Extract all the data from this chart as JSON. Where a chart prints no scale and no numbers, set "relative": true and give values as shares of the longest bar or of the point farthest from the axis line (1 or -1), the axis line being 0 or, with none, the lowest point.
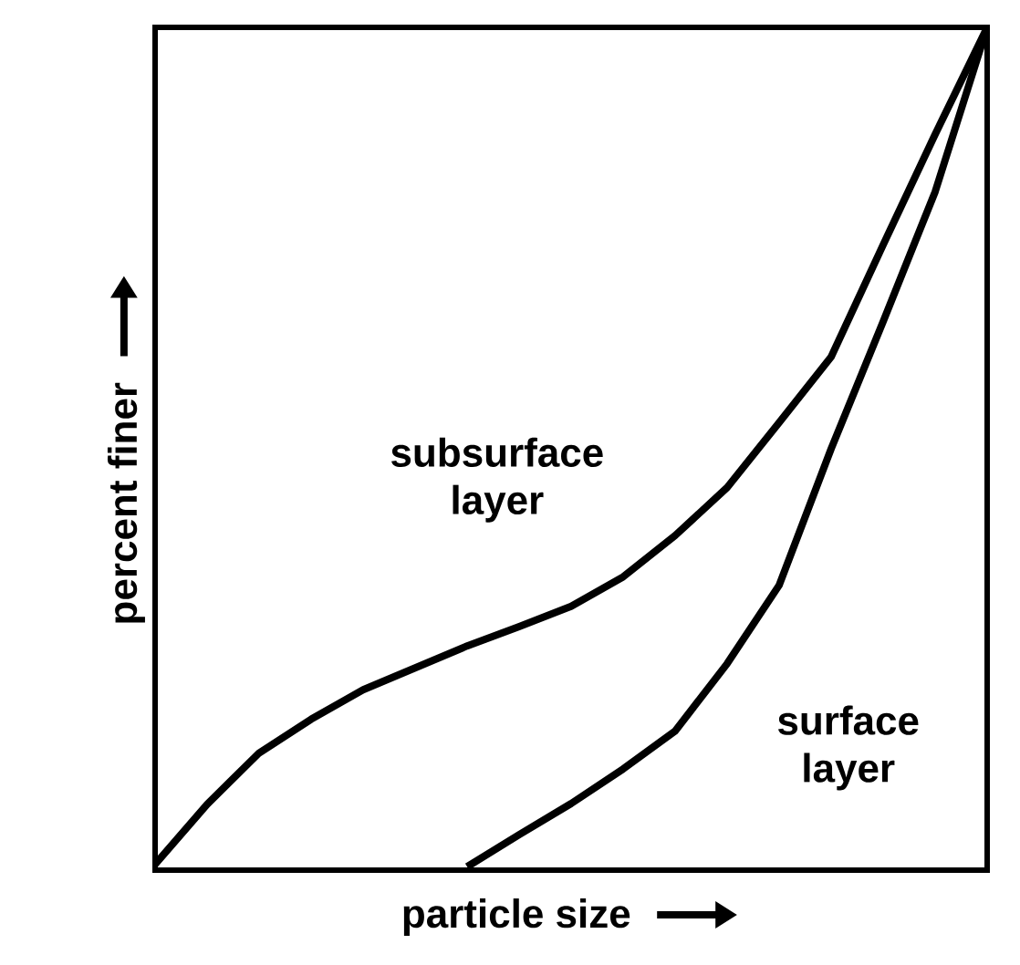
{
  "chart_data": {
    "type": "line",
    "relative": true,
    "xlabel": "particle size",
    "ylabel": "percent finer",
    "categories": [
      null,
      null,
      null,
      null,
      null,
      null,
      null,
      null,
      null,
      null,
      null,
      null,
      null,
      null,
      null,
      null,
      null
    ],
    "series": [
      {
        "name": "subsurface layer",
        "color": "#000000",
        "values": [
          0.007,
          0.078,
          0.139,
          0.179,
          0.214,
          0.24,
          0.266,
          0.289,
          0.313,
          0.348,
          0.397,
          0.454,
          0.531,
          0.609,
          0.742,
          0.873,
          1.0
        ]
      },
      {
        "name": "surface layer",
        "color": "#000000",
        "values": [
          null,
          null,
          null,
          null,
          null,
          null,
          0.004,
          0.042,
          0.079,
          0.12,
          0.165,
          0.245,
          0.338,
          0.5,
          0.651,
          0.805,
          1.0
        ]
      }
    ]
  }
}
